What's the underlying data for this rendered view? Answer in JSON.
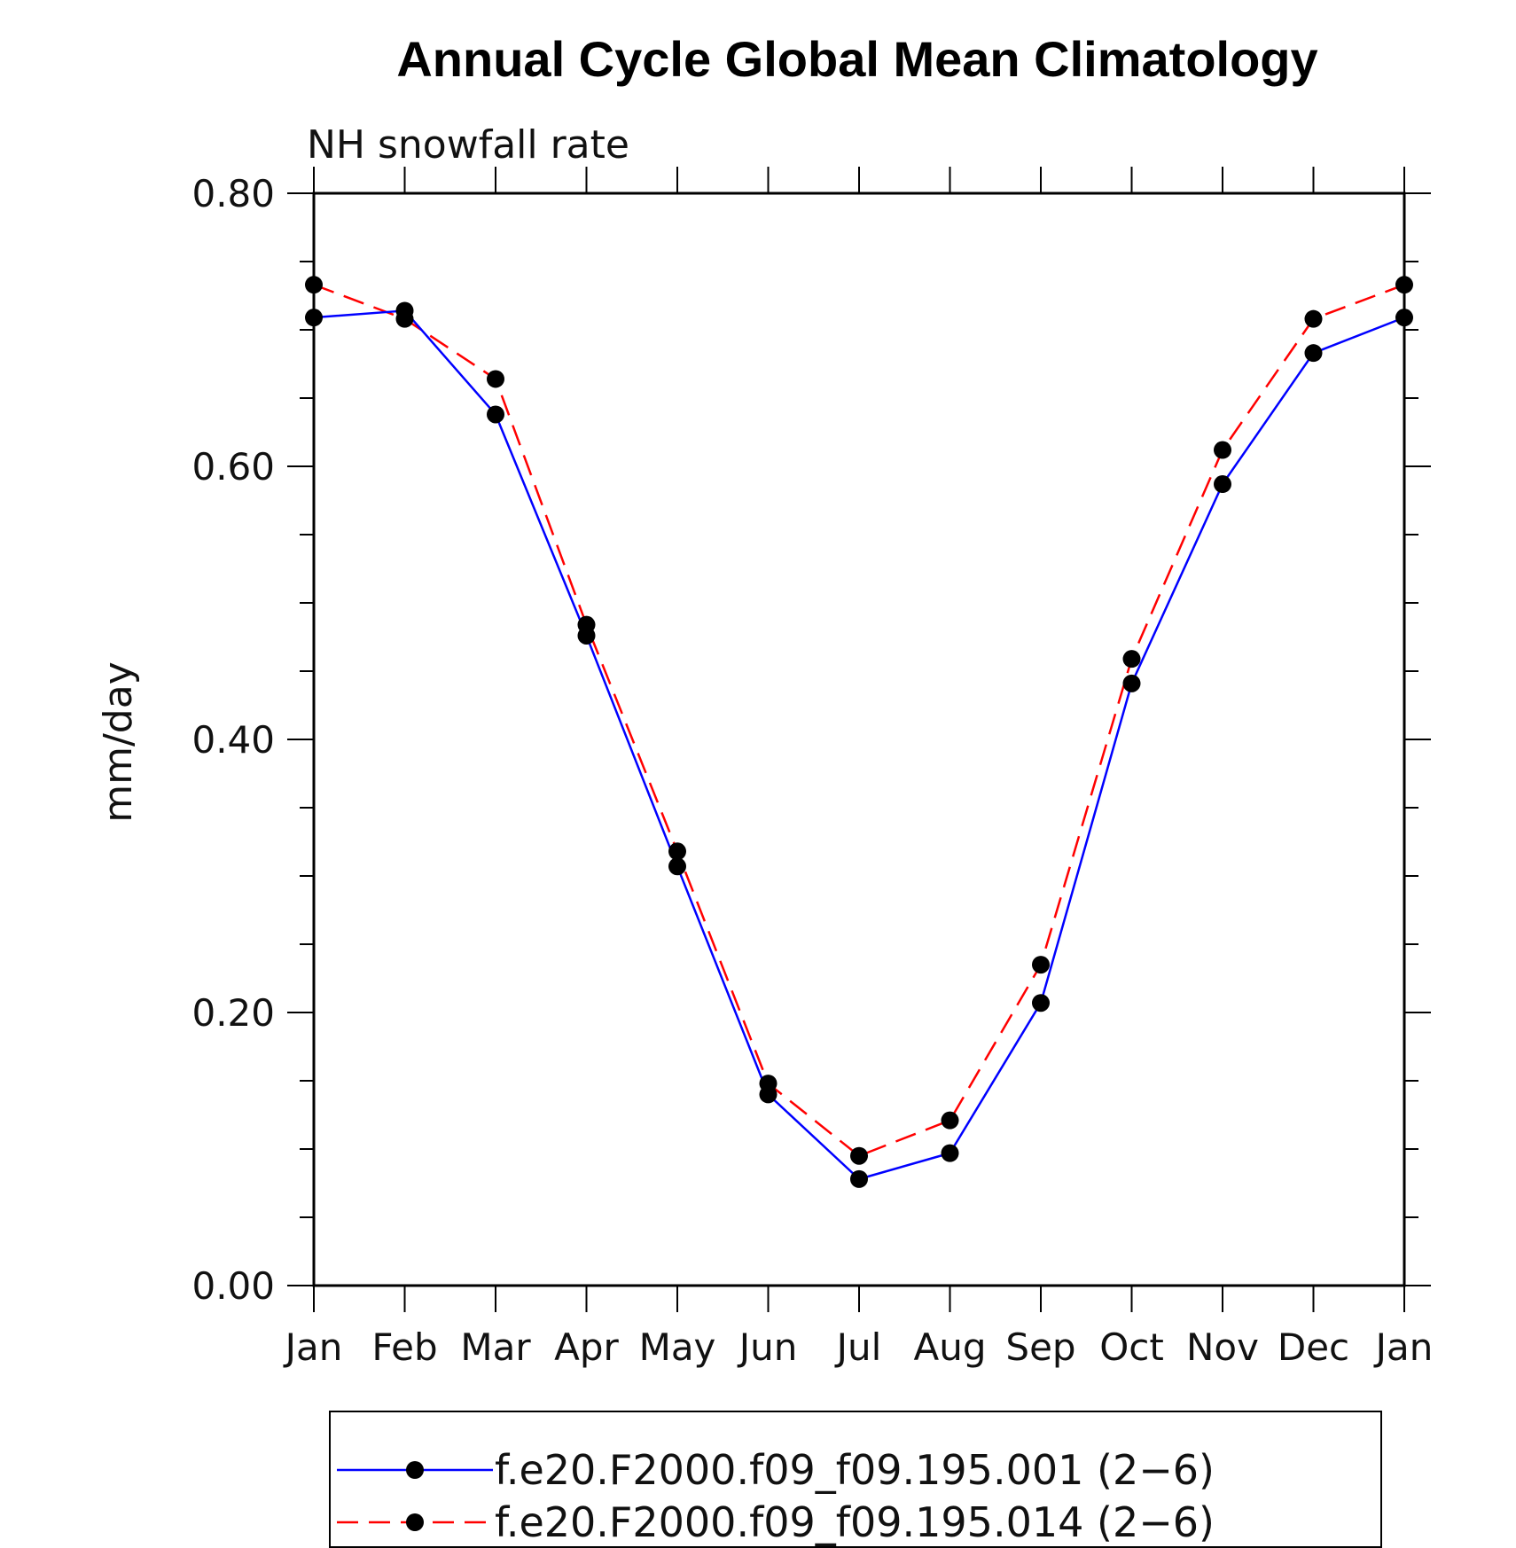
{
  "chart_data": {
    "type": "line",
    "title": "Annual Cycle Global Mean Climatology",
    "subtitle": "NH snowfall rate",
    "ylabel": "mm/day",
    "xlabel": "",
    "ylim": [
      0,
      0.8
    ],
    "y_ticks": [
      "0.00",
      "0.20",
      "0.40",
      "0.60",
      "0.80"
    ],
    "categories": [
      "Jan",
      "Feb",
      "Mar",
      "Apr",
      "May",
      "Jun",
      "Jul",
      "Aug",
      "Sep",
      "Oct",
      "Nov",
      "Dec",
      "Jan"
    ],
    "series": [
      {
        "name": "f.e20.F2000.f09_f09.195.001 (2−6)",
        "color": "#0000ff",
        "dash": "solid",
        "values": [
          0.709,
          0.714,
          0.638,
          0.476,
          0.307,
          0.14,
          0.078,
          0.097,
          0.207,
          0.441,
          0.587,
          0.683,
          0.709
        ]
      },
      {
        "name": "f.e20.F2000.f09_f09.195.014 (2−6)",
        "color": "#ff0000",
        "dash": "dashed",
        "values": [
          0.733,
          0.708,
          0.664,
          0.484,
          0.318,
          0.148,
          0.095,
          0.121,
          0.235,
          0.459,
          0.612,
          0.708,
          0.733
        ]
      }
    ],
    "marker_color": "#000000",
    "legend_position": "bottom-center"
  }
}
